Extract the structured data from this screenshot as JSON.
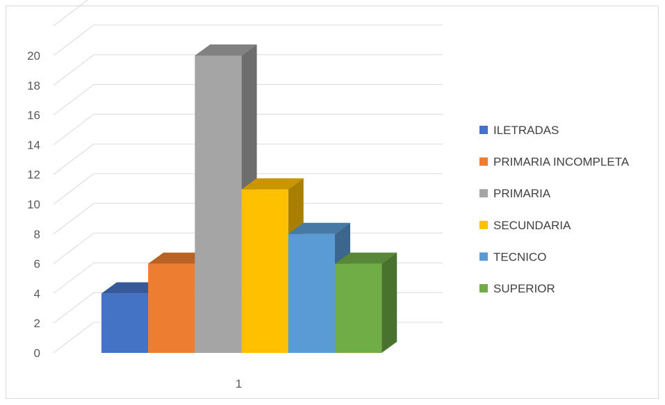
{
  "chart_data": {
    "type": "bar",
    "categories": [
      "1"
    ],
    "series": [
      {
        "name": "ILETRADAS",
        "values": [
          4
        ],
        "color": "#4472c4"
      },
      {
        "name": "PRIMARIA INCOMPLETA",
        "values": [
          6
        ],
        "color": "#ed7d31"
      },
      {
        "name": "PRIMARIA",
        "values": [
          20
        ],
        "color": "#a5a5a5"
      },
      {
        "name": "SECUNDARIA",
        "values": [
          11
        ],
        "color": "#ffc000"
      },
      {
        "name": "TECNICO",
        "values": [
          8
        ],
        "color": "#5b9bd5"
      },
      {
        "name": "SUPERIOR",
        "values": [
          6
        ],
        "color": "#70ad47"
      }
    ],
    "yticks": [
      "0",
      "2",
      "4",
      "6",
      "8",
      "10",
      "12",
      "14",
      "16",
      "18",
      "20"
    ],
    "ylim": [
      0,
      22
    ],
    "grid": true,
    "legend": "right",
    "style": "3d-clustered-column"
  }
}
